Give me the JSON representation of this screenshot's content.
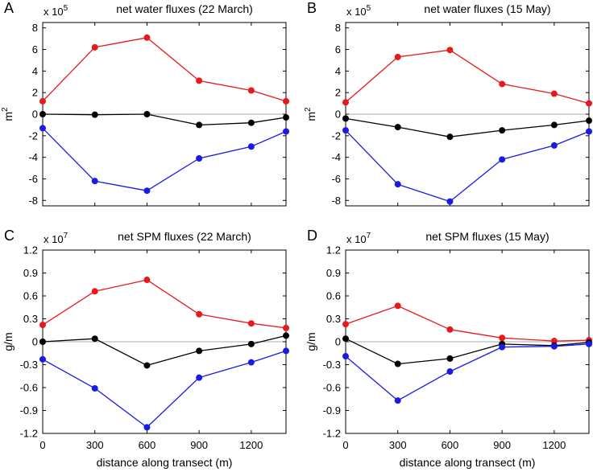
{
  "chart_data": [
    {
      "type": "line",
      "panel": "A",
      "title": "net water fluxes (22 March)",
      "multiplier": {
        "base": "x 10",
        "exponent": "5"
      },
      "ylabel": "m",
      "ylabel_sup": "2",
      "xlabel": "",
      "xlim": [
        0,
        1400
      ],
      "ylim": [
        -8.5,
        8.5
      ],
      "xticks": [
        0,
        300,
        600,
        900,
        1200
      ],
      "xtick_labels": [
        "",
        "",
        "",
        "",
        ""
      ],
      "yticks": [
        -8,
        -6,
        -4,
        -2,
        0,
        2,
        4,
        6,
        8
      ],
      "ytick_labels": [
        "-8",
        "-6",
        "-4",
        "-2",
        "0",
        "2",
        "4",
        "6",
        "8"
      ],
      "x": [
        0,
        300,
        600,
        900,
        1200,
        1400
      ],
      "series": [
        {
          "color": "#e8191c",
          "values": [
            1.2,
            6.2,
            7.1,
            3.1,
            2.2,
            1.2
          ]
        },
        {
          "color": "#000000",
          "values": [
            0.0,
            -0.05,
            0.0,
            -1.0,
            -0.8,
            -0.3
          ]
        },
        {
          "color": "#1a1ae6",
          "values": [
            -1.3,
            -6.2,
            -7.1,
            -4.1,
            -3.0,
            -1.6
          ]
        }
      ]
    },
    {
      "type": "line",
      "panel": "B",
      "title": "net water fluxes (15 May)",
      "multiplier": {
        "base": "x 10",
        "exponent": "5"
      },
      "ylabel": "m",
      "ylabel_sup": "2",
      "xlabel": "",
      "xlim": [
        0,
        1400
      ],
      "ylim": [
        -8.5,
        8.5
      ],
      "xticks": [
        0,
        300,
        600,
        900,
        1200
      ],
      "xtick_labels": [
        "",
        "",
        "",
        "",
        ""
      ],
      "yticks": [
        -8,
        -6,
        -4,
        -2,
        0,
        2,
        4,
        6,
        8
      ],
      "ytick_labels": [
        "-8",
        "-6",
        "-4",
        "-2",
        "0",
        "2",
        "4",
        "6",
        "8"
      ],
      "x": [
        0,
        300,
        600,
        900,
        1200,
        1400
      ],
      "series": [
        {
          "color": "#e8191c",
          "values": [
            1.1,
            5.3,
            5.95,
            2.8,
            1.9,
            1.0
          ]
        },
        {
          "color": "#000000",
          "values": [
            -0.4,
            -1.2,
            -2.1,
            -1.5,
            -1.0,
            -0.6
          ]
        },
        {
          "color": "#1a1ae6",
          "values": [
            -1.5,
            -6.5,
            -8.1,
            -4.2,
            -2.9,
            -1.6
          ]
        }
      ]
    },
    {
      "type": "line",
      "panel": "C",
      "title": "net SPM fluxes (22 March)",
      "multiplier": {
        "base": "x 10",
        "exponent": "7"
      },
      "ylabel": "g/m",
      "ylabel_sup": "",
      "xlabel": "distance along transect (m)",
      "xlim": [
        0,
        1400
      ],
      "ylim": [
        -1.2,
        1.2
      ],
      "xticks": [
        0,
        300,
        600,
        900,
        1200
      ],
      "xtick_labels": [
        "0",
        "300",
        "600",
        "900",
        "1200"
      ],
      "yticks": [
        -1.2,
        -0.9,
        -0.6,
        -0.3,
        0,
        0.3,
        0.6,
        0.9,
        1.2
      ],
      "ytick_labels": [
        "-1.2",
        "-0.9",
        "-0.6",
        "-0.3",
        "0",
        "0.3",
        "0.6",
        "0.9",
        "1.2"
      ],
      "x": [
        0,
        300,
        600,
        900,
        1200,
        1400
      ],
      "series": [
        {
          "color": "#e8191c",
          "values": [
            0.22,
            0.66,
            0.81,
            0.36,
            0.24,
            0.18
          ]
        },
        {
          "color": "#000000",
          "values": [
            0.0,
            0.04,
            -0.31,
            -0.12,
            -0.03,
            0.08
          ]
        },
        {
          "color": "#1a1ae6",
          "values": [
            -0.23,
            -0.61,
            -1.12,
            -0.47,
            -0.27,
            -0.12
          ]
        }
      ]
    },
    {
      "type": "line",
      "panel": "D",
      "title": "net SPM fluxes (15 May)",
      "multiplier": {
        "base": "x 10",
        "exponent": "7"
      },
      "ylabel": "g/m",
      "ylabel_sup": "",
      "xlabel": "distance along transect (m)",
      "xlim": [
        0,
        1400
      ],
      "ylim": [
        -1.2,
        1.2
      ],
      "xticks": [
        0,
        300,
        600,
        900,
        1200
      ],
      "xtick_labels": [
        "0",
        "300",
        "600",
        "900",
        "1200"
      ],
      "yticks": [
        -1.2,
        -0.9,
        -0.6,
        -0.3,
        0,
        0.3,
        0.6,
        0.9,
        1.2
      ],
      "ytick_labels": [
        "-1.2",
        "-0.9",
        "-0.6",
        "-0.3",
        "0",
        "0.3",
        "0.6",
        "0.9",
        "1.2"
      ],
      "x": [
        0,
        300,
        600,
        900,
        1200,
        1400
      ],
      "series": [
        {
          "color": "#e8191c",
          "values": [
            0.23,
            0.47,
            0.16,
            0.05,
            0.01,
            0.02
          ]
        },
        {
          "color": "#000000",
          "values": [
            0.04,
            -0.29,
            -0.22,
            -0.03,
            -0.05,
            -0.01
          ]
        },
        {
          "color": "#1a1ae6",
          "values": [
            -0.19,
            -0.77,
            -0.39,
            -0.07,
            -0.06,
            -0.03
          ]
        }
      ]
    }
  ]
}
